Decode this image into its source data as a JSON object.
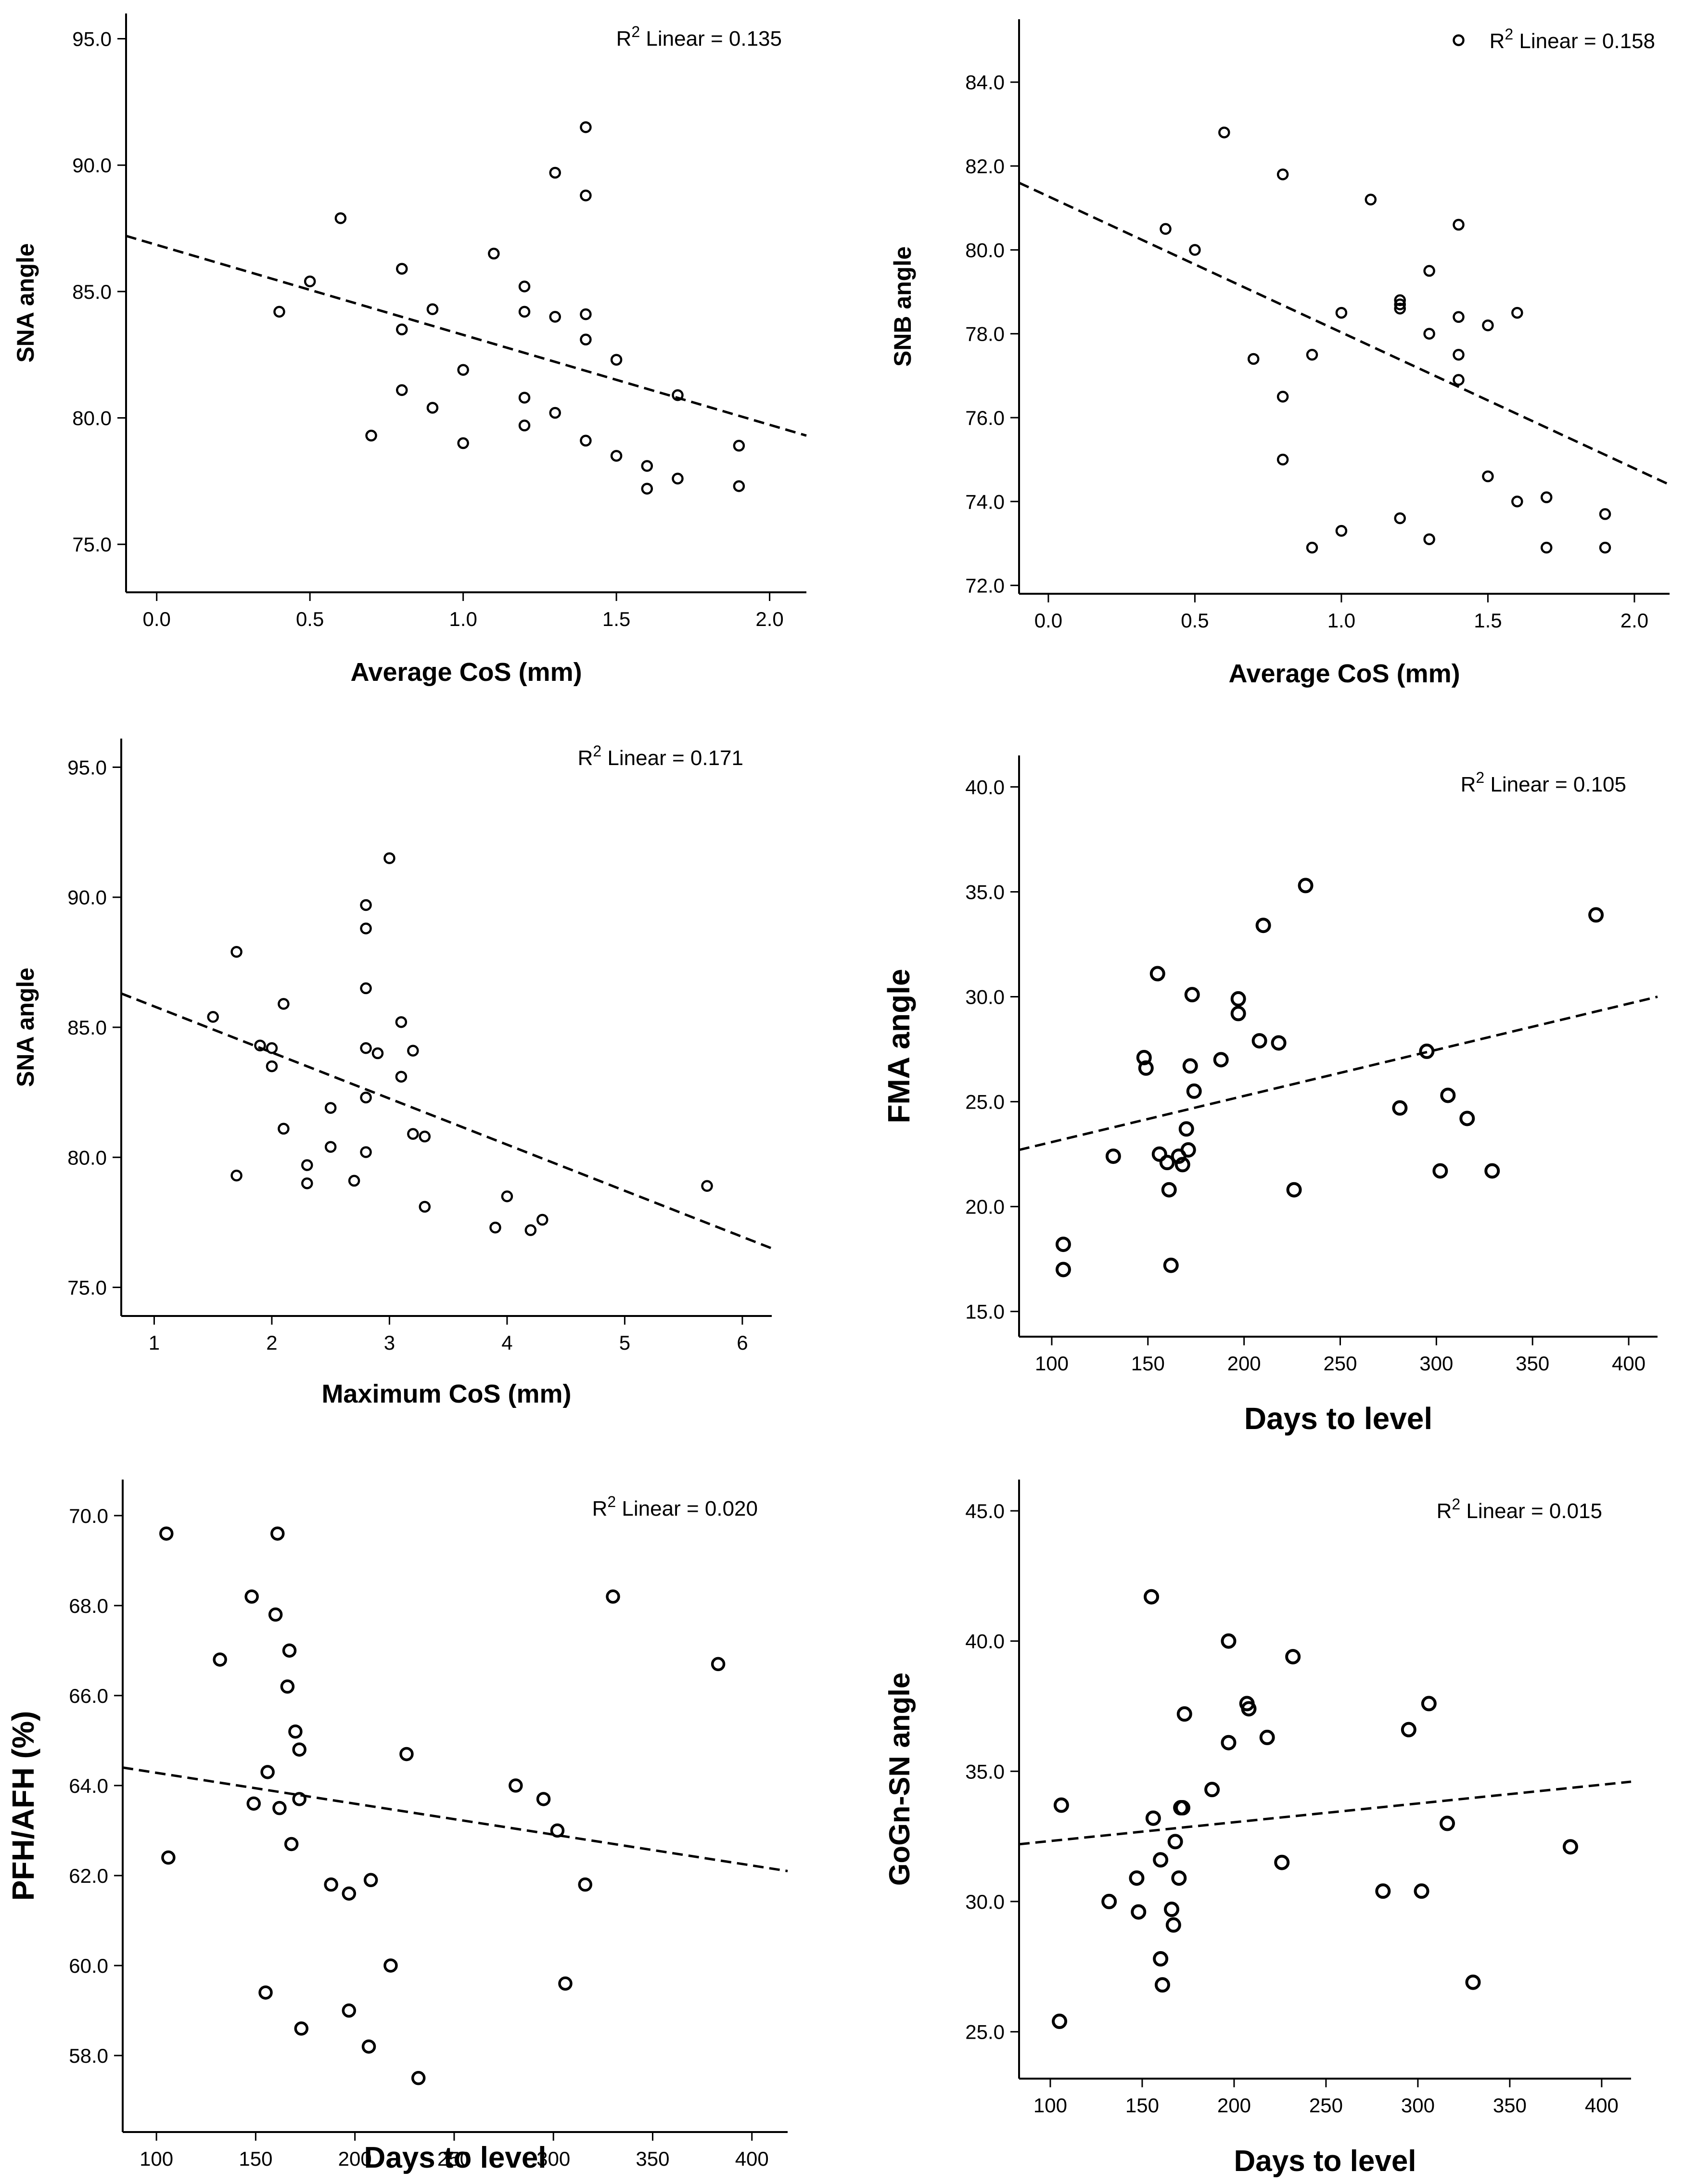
{
  "figure": {
    "description": "Six scatter plots with linear fit lines"
  },
  "chart_data": [
    {
      "type": "scatter",
      "id": "sna-avg",
      "xlabel": "Average CoS (mm)",
      "ylabel": "SNA angle",
      "annotation": {
        "prefix": "R",
        "sup": "2",
        "text": " Linear = 0.135"
      },
      "xlim": [
        -0.1,
        2.12
      ],
      "ylim": [
        73.1,
        96.0
      ],
      "xticks": [
        0.0,
        0.5,
        1.0,
        1.5,
        2.0
      ],
      "yticks": [
        75.0,
        80.0,
        85.0,
        90.0,
        95.0
      ],
      "tick_decimals": 1,
      "fit": {
        "x0": -0.1,
        "y0": 87.2,
        "x1": 2.12,
        "y1": 79.3
      },
      "points": [
        [
          0.4,
          84.2
        ],
        [
          0.5,
          85.4
        ],
        [
          0.6,
          87.9
        ],
        [
          0.7,
          79.3
        ],
        [
          0.8,
          85.9
        ],
        [
          0.8,
          83.5
        ],
        [
          0.8,
          81.1
        ],
        [
          0.9,
          84.3
        ],
        [
          0.9,
          80.4
        ],
        [
          1.0,
          81.9
        ],
        [
          1.0,
          79.0
        ],
        [
          1.1,
          86.5
        ],
        [
          1.2,
          85.2
        ],
        [
          1.2,
          84.2
        ],
        [
          1.2,
          80.8
        ],
        [
          1.2,
          79.7
        ],
        [
          1.3,
          89.7
        ],
        [
          1.3,
          84.0
        ],
        [
          1.3,
          80.2
        ],
        [
          1.4,
          91.5
        ],
        [
          1.4,
          88.8
        ],
        [
          1.4,
          84.1
        ],
        [
          1.4,
          83.1
        ],
        [
          1.4,
          79.1
        ],
        [
          1.5,
          82.3
        ],
        [
          1.5,
          78.5
        ],
        [
          1.6,
          78.1
        ],
        [
          1.6,
          77.2
        ],
        [
          1.7,
          80.9
        ],
        [
          1.7,
          77.6
        ],
        [
          1.9,
          78.9
        ],
        [
          1.9,
          77.3
        ]
      ]
    },
    {
      "type": "scatter",
      "id": "snb-avg",
      "xlabel": "Average CoS (mm)",
      "ylabel": "SNB angle",
      "annotation": {
        "prefix": "R",
        "sup": "2",
        "text": " Linear = 0.158"
      },
      "xlim": [
        -0.1,
        2.12
      ],
      "ylim": [
        71.8,
        85.5
      ],
      "xticks": [
        0.0,
        0.5,
        1.0,
        1.5,
        2.0
      ],
      "yticks": [
        72.0,
        74.0,
        76.0,
        78.0,
        80.0,
        82.0,
        84.0
      ],
      "tick_decimals": 1,
      "fit": {
        "x0": -0.1,
        "y0": 81.6,
        "x1": 2.12,
        "y1": 74.4
      },
      "points": [
        [
          0.4,
          80.5
        ],
        [
          0.5,
          80.0
        ],
        [
          0.6,
          82.8
        ],
        [
          0.7,
          77.4
        ],
        [
          0.8,
          81.8
        ],
        [
          0.8,
          76.5
        ],
        [
          0.8,
          75.0
        ],
        [
          0.9,
          77.5
        ],
        [
          0.9,
          72.9
        ],
        [
          1.0,
          78.5
        ],
        [
          1.0,
          73.3
        ],
        [
          1.1,
          81.2
        ],
        [
          1.2,
          78.8
        ],
        [
          1.2,
          78.7
        ],
        [
          1.2,
          78.6
        ],
        [
          1.2,
          73.6
        ],
        [
          1.3,
          79.5
        ],
        [
          1.3,
          78.0
        ],
        [
          1.3,
          73.1
        ],
        [
          1.4,
          85.0
        ],
        [
          1.4,
          80.6
        ],
        [
          1.4,
          78.4
        ],
        [
          1.4,
          77.5
        ],
        [
          1.4,
          76.9
        ],
        [
          1.5,
          78.2
        ],
        [
          1.5,
          74.6
        ],
        [
          1.6,
          78.5
        ],
        [
          1.6,
          74.0
        ],
        [
          1.7,
          74.1
        ],
        [
          1.7,
          72.9
        ],
        [
          1.9,
          73.7
        ],
        [
          1.9,
          72.9
        ]
      ]
    },
    {
      "type": "scatter",
      "id": "sna-max",
      "xlabel": "Maximum CoS (mm)",
      "ylabel": "SNA angle",
      "annotation": {
        "prefix": "R",
        "sup": "2",
        "text": " Linear = 0.171"
      },
      "xlim": [
        0.72,
        6.25
      ],
      "ylim": [
        73.9,
        96.1
      ],
      "xticks": [
        1,
        2,
        3,
        4,
        5,
        6
      ],
      "yticks": [
        75.0,
        80.0,
        85.0,
        90.0,
        95.0
      ],
      "tick_decimals_x": 0,
      "tick_decimals": 1,
      "fit": {
        "x0": 0.72,
        "y0": 86.3,
        "x1": 6.25,
        "y1": 76.5
      },
      "points": [
        [
          1.5,
          85.4
        ],
        [
          1.7,
          87.9
        ],
        [
          1.7,
          79.3
        ],
        [
          1.9,
          84.3
        ],
        [
          2.0,
          84.2
        ],
        [
          2.0,
          83.5
        ],
        [
          2.1,
          85.9
        ],
        [
          2.1,
          81.1
        ],
        [
          2.3,
          79.7
        ],
        [
          2.3,
          79.0
        ],
        [
          2.5,
          81.9
        ],
        [
          2.5,
          80.4
        ],
        [
          2.7,
          79.1
        ],
        [
          2.8,
          89.7
        ],
        [
          2.8,
          88.8
        ],
        [
          2.8,
          86.5
        ],
        [
          2.8,
          84.2
        ],
        [
          2.8,
          82.3
        ],
        [
          2.8,
          80.2
        ],
        [
          2.9,
          84.0
        ],
        [
          3.0,
          91.5
        ],
        [
          3.1,
          85.2
        ],
        [
          3.1,
          83.1
        ],
        [
          3.2,
          84.1
        ],
        [
          3.2,
          80.9
        ],
        [
          3.3,
          80.8
        ],
        [
          3.3,
          78.1
        ],
        [
          3.9,
          77.3
        ],
        [
          4.0,
          78.5
        ],
        [
          4.2,
          77.2
        ],
        [
          4.3,
          77.6
        ],
        [
          5.7,
          78.9
        ]
      ]
    },
    {
      "type": "scatter",
      "id": "fma-days",
      "xlabel": "Days to level",
      "ylabel": "FMA angle",
      "annotation": {
        "prefix": "R",
        "sup": "2",
        "text": " Linear = 0.105"
      },
      "xlim": [
        83,
        415
      ],
      "ylim": [
        13.8,
        41.5
      ],
      "xticks": [
        100,
        150,
        200,
        250,
        300,
        350,
        400
      ],
      "yticks": [
        15.0,
        20.0,
        25.0,
        30.0,
        35.0,
        40.0
      ],
      "tick_decimals_x": 0,
      "tick_decimals": 1,
      "fit": {
        "x0": 83,
        "y0": 22.7,
        "x1": 415,
        "y1": 30.0
      },
      "points": [
        [
          106,
          18.2
        ],
        [
          106,
          17.0
        ],
        [
          132,
          22.4
        ],
        [
          148,
          27.1
        ],
        [
          149,
          26.6
        ],
        [
          155,
          31.1
        ],
        [
          156,
          22.5
        ],
        [
          160,
          22.1
        ],
        [
          161,
          20.8
        ],
        [
          162,
          17.2
        ],
        [
          166,
          22.4
        ],
        [
          168,
          22.0
        ],
        [
          170,
          23.7
        ],
        [
          171,
          22.7
        ],
        [
          172,
          26.7
        ],
        [
          173,
          30.1
        ],
        [
          174,
          25.5
        ],
        [
          188,
          27.0
        ],
        [
          197,
          29.9
        ],
        [
          197,
          29.2
        ],
        [
          208,
          27.9
        ],
        [
          210,
          33.4
        ],
        [
          218,
          27.8
        ],
        [
          226,
          20.8
        ],
        [
          232,
          35.3
        ],
        [
          281,
          24.7
        ],
        [
          295,
          27.4
        ],
        [
          302,
          21.7
        ],
        [
          306,
          25.3
        ],
        [
          316,
          24.2
        ],
        [
          329,
          21.7
        ],
        [
          383,
          33.9
        ]
      ]
    },
    {
      "type": "scatter",
      "id": "pfh-days",
      "xlabel": "Days to level",
      "ylabel": "PFH/AFH (%)",
      "annotation": {
        "prefix": "R",
        "sup": "2",
        "text": " Linear = 0.020"
      },
      "xlim": [
        83,
        418
      ],
      "ylim": [
        56.3,
        70.8
      ],
      "xticks": [
        100,
        150,
        200,
        250,
        300,
        350,
        400
      ],
      "yticks": [
        58.0,
        60.0,
        62.0,
        64.0,
        66.0,
        68.0,
        70.0
      ],
      "tick_decimals_x": 0,
      "tick_decimals": 1,
      "fit": {
        "x0": 83,
        "y0": 64.4,
        "x1": 418,
        "y1": 62.1
      },
      "points": [
        [
          105,
          69.6
        ],
        [
          106,
          62.4
        ],
        [
          132,
          66.8
        ],
        [
          148,
          68.2
        ],
        [
          149,
          63.6
        ],
        [
          155,
          59.4
        ],
        [
          156,
          64.3
        ],
        [
          160,
          67.8
        ],
        [
          161,
          69.6
        ],
        [
          162,
          63.5
        ],
        [
          166,
          66.2
        ],
        [
          167,
          67.0
        ],
        [
          168,
          62.7
        ],
        [
          170,
          65.2
        ],
        [
          172,
          64.8
        ],
        [
          172,
          63.7
        ],
        [
          173,
          58.6
        ],
        [
          188,
          61.8
        ],
        [
          197,
          61.6
        ],
        [
          197,
          59.0
        ],
        [
          207,
          58.2
        ],
        [
          208,
          61.9
        ],
        [
          218,
          60.0
        ],
        [
          226,
          64.7
        ],
        [
          232,
          57.5
        ],
        [
          281,
          64.0
        ],
        [
          295,
          63.7
        ],
        [
          302,
          63.0
        ],
        [
          306,
          59.6
        ],
        [
          316,
          61.8
        ],
        [
          330,
          68.2
        ],
        [
          383,
          66.7
        ]
      ]
    },
    {
      "type": "scatter",
      "id": "gogn-days",
      "xlabel": "Days to level",
      "ylabel": "GoGn-SN angle",
      "annotation": {
        "prefix": "R",
        "sup": "2",
        "text": " Linear = 0.015"
      },
      "xlim": [
        83,
        416
      ],
      "ylim": [
        23.2,
        46.2
      ],
      "xticks": [
        100,
        150,
        200,
        250,
        300,
        350,
        400
      ],
      "yticks": [
        25.0,
        30.0,
        35.0,
        40.0,
        45.0
      ],
      "tick_decimals_x": 0,
      "tick_decimals": 1,
      "fit": {
        "x0": 83,
        "y0": 32.2,
        "x1": 416,
        "y1": 34.6
      },
      "points": [
        [
          106,
          33.7
        ],
        [
          105,
          25.4
        ],
        [
          132,
          30.0
        ],
        [
          147,
          30.9
        ],
        [
          148,
          29.6
        ],
        [
          155,
          41.7
        ],
        [
          156,
          33.2
        ],
        [
          160,
          31.6
        ],
        [
          160,
          27.8
        ],
        [
          161,
          26.8
        ],
        [
          166,
          29.7
        ],
        [
          167,
          29.1
        ],
        [
          168,
          32.3
        ],
        [
          170,
          30.9
        ],
        [
          171,
          33.6
        ],
        [
          172,
          33.6
        ],
        [
          173,
          37.2
        ],
        [
          188,
          34.3
        ],
        [
          197,
          40.0
        ],
        [
          197,
          36.1
        ],
        [
          207,
          37.6
        ],
        [
          208,
          37.4
        ],
        [
          218,
          36.3
        ],
        [
          226,
          31.5
        ],
        [
          232,
          39.4
        ],
        [
          281,
          30.4
        ],
        [
          295,
          36.6
        ],
        [
          302,
          30.4
        ],
        [
          306,
          37.6
        ],
        [
          316,
          33.0
        ],
        [
          330,
          26.9
        ],
        [
          383,
          32.1
        ]
      ]
    }
  ]
}
